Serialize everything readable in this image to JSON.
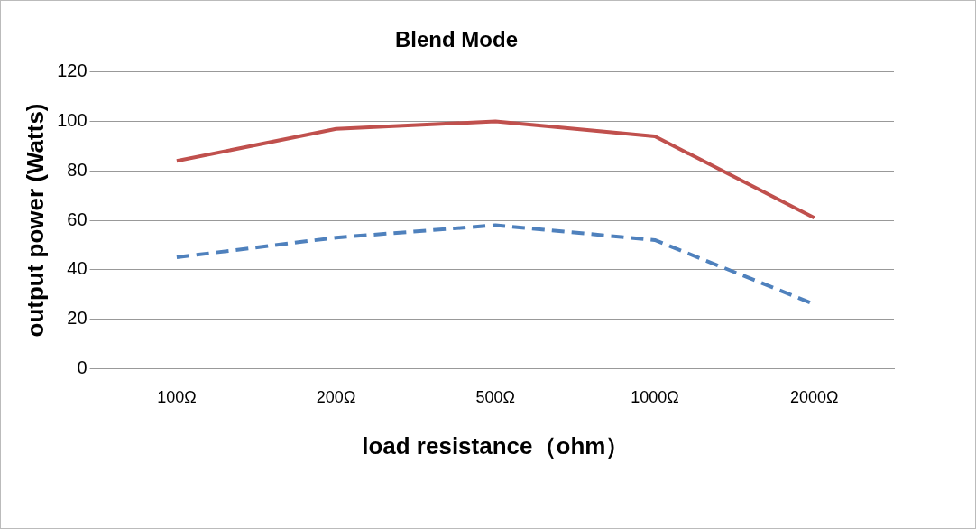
{
  "chart_data": {
    "type": "line",
    "title": "Blend Mode",
    "xlabel": "load resistance（ohm）",
    "ylabel": "output power (Watts)",
    "categories": [
      "100Ω",
      "200Ω",
      "500Ω",
      "1000Ω",
      "2000Ω"
    ],
    "series": [
      {
        "color": "#c0504d",
        "values": [
          84,
          97,
          100,
          94,
          61
        ],
        "line_style": "solid"
      },
      {
        "color": "#4f81bd",
        "values": [
          45,
          53,
          58,
          52,
          26
        ],
        "line_style": "dashed"
      }
    ],
    "ylim": [
      0,
      120
    ],
    "yticks": [
      0,
      20,
      40,
      60,
      80,
      100,
      120
    ],
    "grid": "y",
    "legend": false,
    "marker": "none"
  }
}
